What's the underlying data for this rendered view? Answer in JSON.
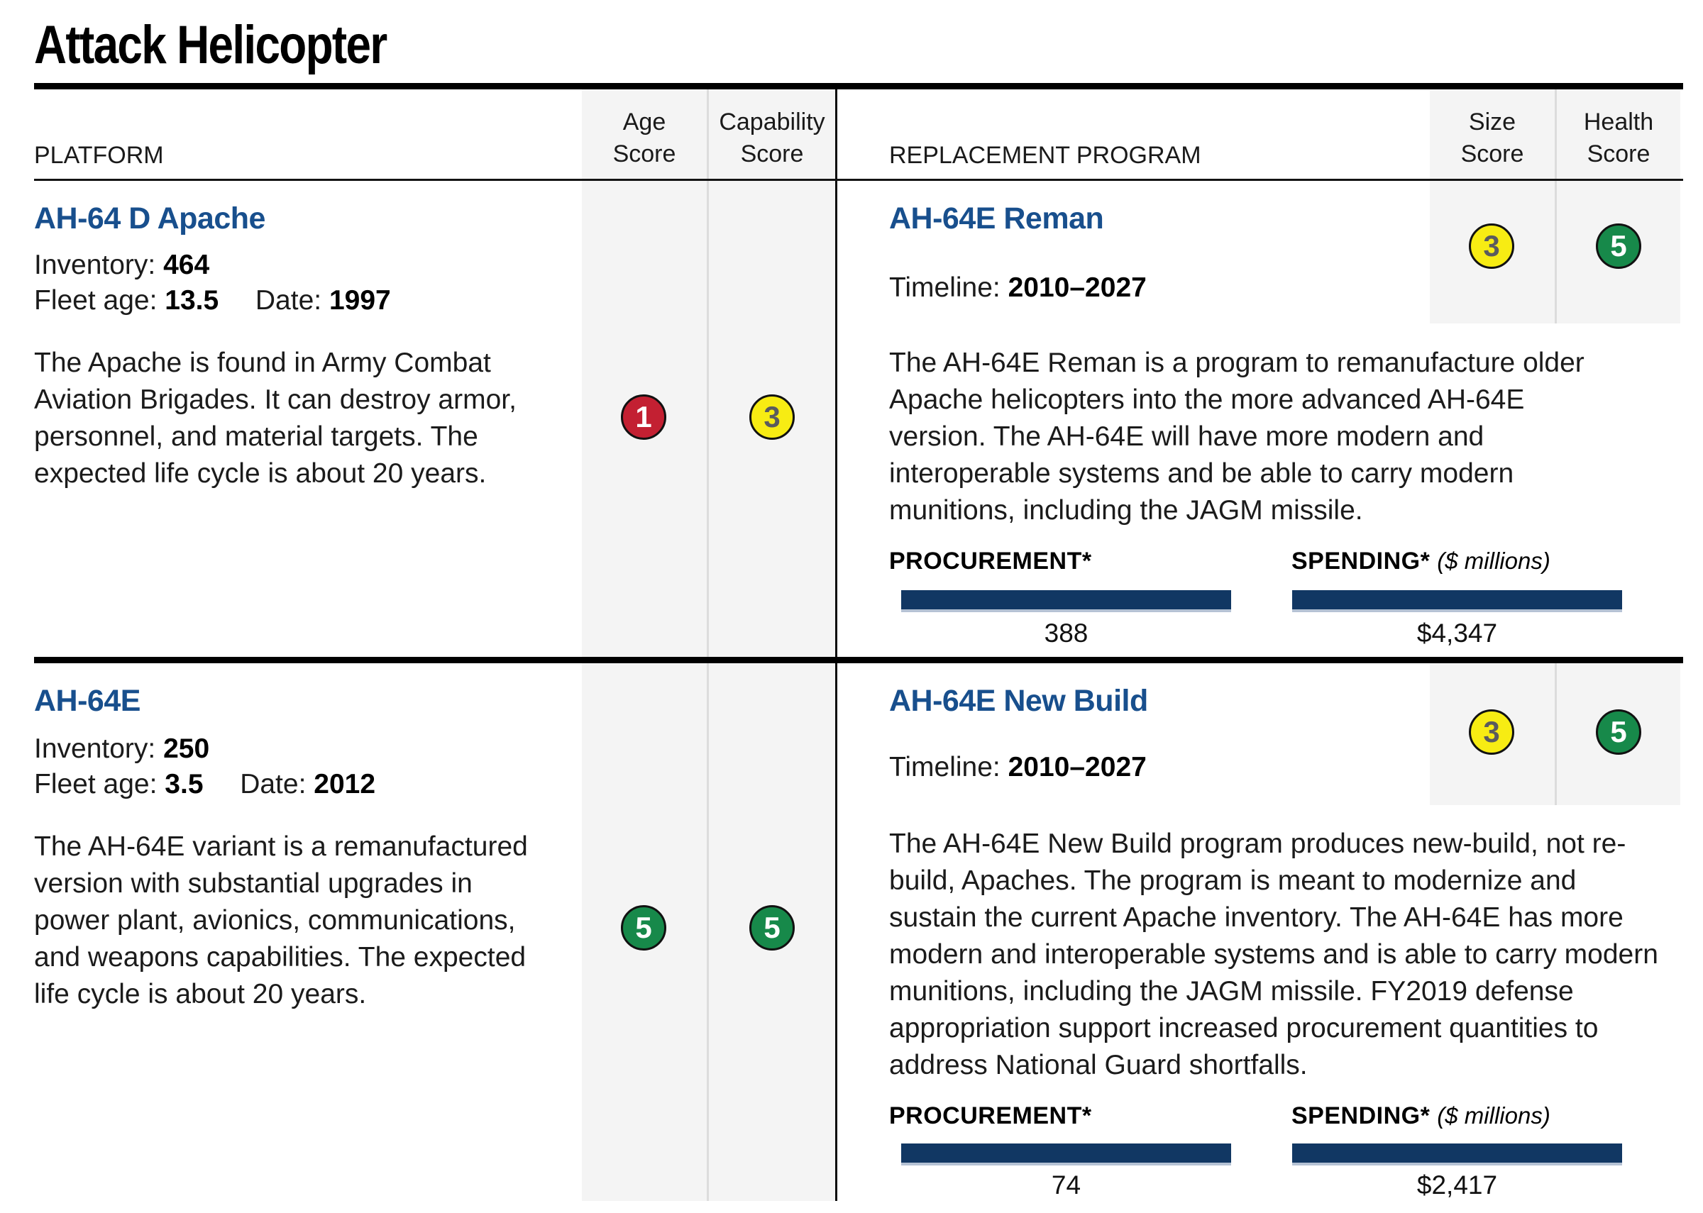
{
  "title": "Attack Helicopter",
  "headers": {
    "platform": "PLATFORM",
    "age": {
      "l1": "Age",
      "l2": "Score"
    },
    "capability": {
      "l1": "Capability",
      "l2": "Score"
    },
    "replacement": "REPLACEMENT PROGRAM",
    "size": {
      "l1": "Size",
      "l2": "Score"
    },
    "health": {
      "l1": "Health",
      "l2": "Score"
    }
  },
  "colors": {
    "red": {
      "bg": "#C32032",
      "fg": "#FFFFFF"
    },
    "yellow": {
      "bg": "#F7EC13",
      "fg": "#5A5B5E"
    },
    "green": {
      "bg": "#17894A",
      "fg": "#FFFFFF"
    },
    "bar": "#113763",
    "accent_blue": "#184F8D"
  },
  "rows": [
    {
      "platform": {
        "name": "AH-64 D Apache",
        "inventory_label": "Inventory:",
        "inventory": "464",
        "fleet_age_label": "Fleet age:",
        "fleet_age": "13.5",
        "date_label": "Date:",
        "date": "1997",
        "description": "The Apache is found in Army Combat Aviation Brigades. It can destroy armor, personnel, and material targets. The expected life cycle is about 20 years.",
        "age_score": {
          "value": "1",
          "level": "red"
        },
        "capability_score": {
          "value": "3",
          "level": "yellow"
        }
      },
      "replacement": {
        "name": "AH-64E Reman",
        "timeline_label": "Timeline:",
        "timeline": "2010–2027",
        "size_score": {
          "value": "3",
          "level": "yellow"
        },
        "health_score": {
          "value": "5",
          "level": "green"
        },
        "description": "The AH-64E Reman is a program to remanufacture older Apache helicopters into the more advanced AH-64E version. The AH-64E will have more modern and interoperable systems and be able to carry modern munitions, including the JAGM missile.",
        "procurement_label": "PROCUREMENT*",
        "procurement_value": "388",
        "spending_label": "SPENDING*",
        "spending_unit": "($ millions)",
        "spending_value": "$4,347"
      }
    },
    {
      "platform": {
        "name": "AH-64E",
        "inventory_label": "Inventory:",
        "inventory": "250",
        "fleet_age_label": "Fleet age:",
        "fleet_age": "3.5",
        "date_label": "Date:",
        "date": "2012",
        "description": "The AH-64E variant is a remanufactured version with substantial upgrades in power plant, avionics, communications, and weapons capabilities. The expected life cycle is about 20 years.",
        "age_score": {
          "value": "5",
          "level": "green"
        },
        "capability_score": {
          "value": "5",
          "level": "green"
        }
      },
      "replacement": {
        "name": "AH-64E New Build",
        "timeline_label": "Timeline:",
        "timeline": "2010–2027",
        "size_score": {
          "value": "3",
          "level": "yellow"
        },
        "health_score": {
          "value": "5",
          "level": "green"
        },
        "description": "The AH-64E New Build program produces new-build, not re-build, Apaches. The program is meant to modernize and sustain the current Apache inventory. The AH-64E has more modern and interoperable systems and is able to carry modern munitions, including the JAGM missile. FY2019 defense appropriation support increased procurement quantities to address National Guard shortfalls.",
        "procurement_label": "PROCUREMENT*",
        "procurement_value": "74",
        "spending_label": "SPENDING*",
        "spending_unit": "($ millions)",
        "spending_value": "$2,417"
      }
    }
  ]
}
